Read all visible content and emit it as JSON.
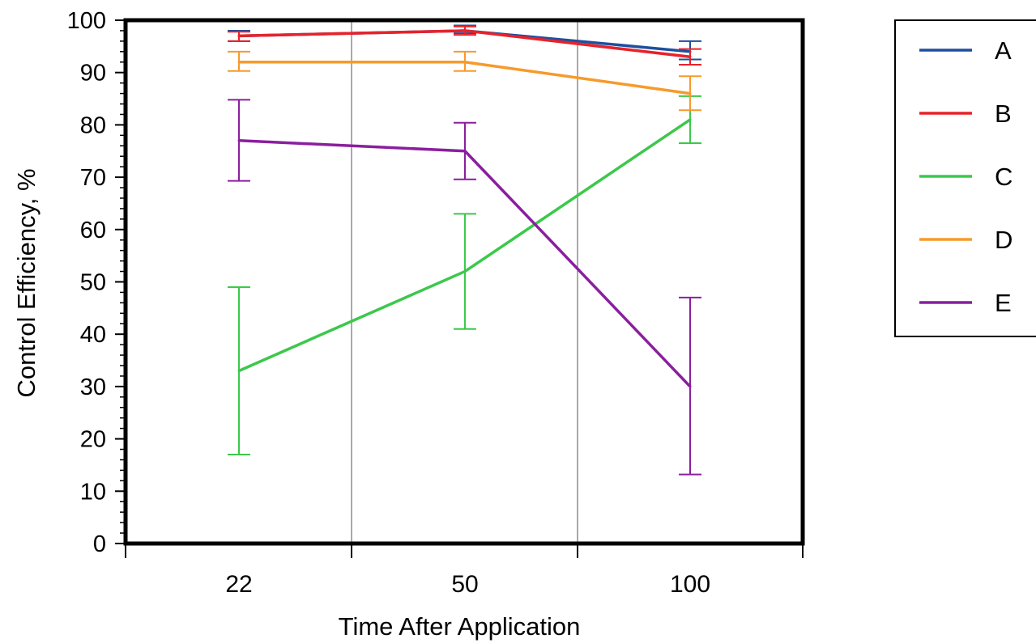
{
  "chart_data": {
    "type": "line",
    "title": "",
    "xlabel": "Time After Application",
    "ylabel": "Control Efficiency, %",
    "categories": [
      "22",
      "50",
      "100"
    ],
    "ylim": [
      0,
      100
    ],
    "yticks": [
      0,
      10,
      20,
      30,
      40,
      50,
      60,
      70,
      80,
      90,
      100
    ],
    "grid": "vertical separators between categories",
    "legend_position": "right",
    "series": [
      {
        "name": "A",
        "color": "#1f4f9e",
        "values": [
          97,
          98,
          94
        ],
        "err_low": [
          96,
          97.5,
          92.5
        ],
        "err_high": [
          98,
          99,
          96
        ]
      },
      {
        "name": "B",
        "color": "#e8222a",
        "values": [
          97,
          98,
          93
        ],
        "err_low": [
          96,
          97.2,
          91.5
        ],
        "err_high": [
          97.8,
          98.8,
          94.5
        ]
      },
      {
        "name": "C",
        "color": "#3cc84b",
        "values": [
          33,
          52,
          81
        ],
        "err_low": [
          17,
          41,
          76.5
        ],
        "err_high": [
          49,
          63,
          85.5
        ]
      },
      {
        "name": "D",
        "color": "#f79a2b",
        "values": [
          92,
          92,
          86
        ],
        "err_low": [
          90.3,
          90.3,
          82.8
        ],
        "err_high": [
          94,
          94,
          89.3
        ]
      },
      {
        "name": "E",
        "color": "#8a1f9e",
        "values": [
          77,
          75,
          30
        ],
        "err_low": [
          69.3,
          69.6,
          13.2
        ],
        "err_high": [
          84.8,
          80.4,
          47
        ]
      }
    ]
  }
}
